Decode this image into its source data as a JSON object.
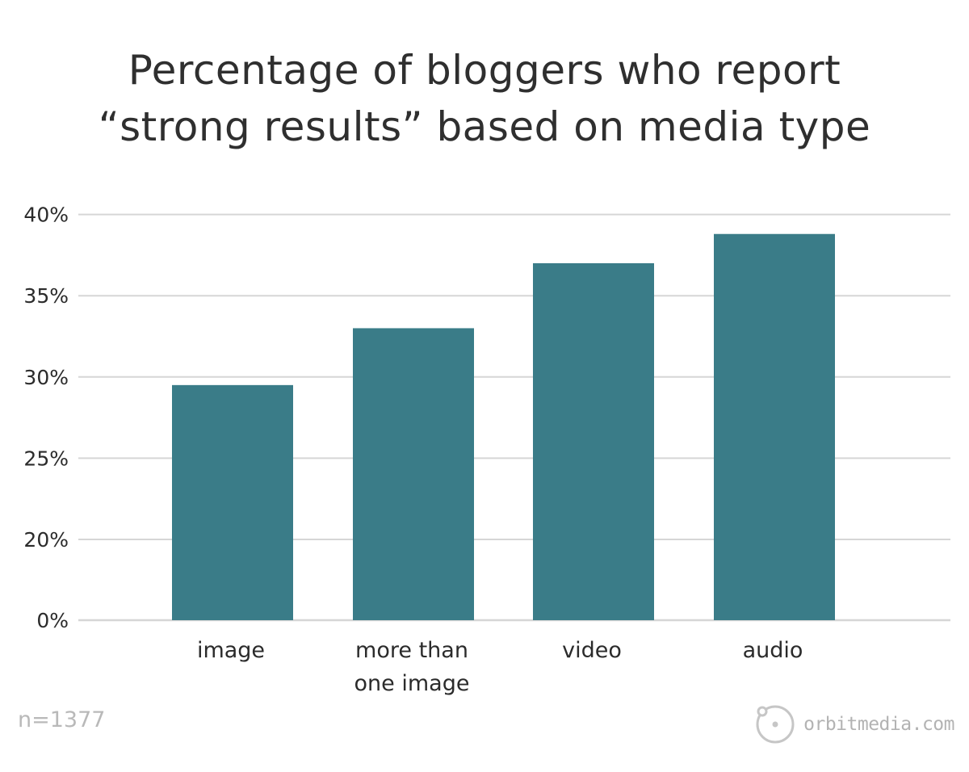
{
  "chart_data": {
    "type": "bar",
    "title_lines": [
      "Percentage of bloggers who report",
      "“strong results” based on media type"
    ],
    "categories": [
      [
        "image"
      ],
      [
        "more than",
        "one image"
      ],
      [
        "video"
      ],
      [
        "audio"
      ]
    ],
    "values": [
      29.5,
      33,
      37,
      38.8
    ],
    "y_ticks": [
      {
        "value": 0,
        "label": "0%"
      },
      {
        "value": 20,
        "label": "20%"
      },
      {
        "value": 25,
        "label": "25%"
      },
      {
        "value": 30,
        "label": "30%"
      },
      {
        "value": 35,
        "label": "35%"
      },
      {
        "value": 40,
        "label": "40%"
      }
    ],
    "ylim": [
      0,
      40
    ],
    "axis_note": "y-axis scale is broken between 0% and 20%",
    "grid": true,
    "bar_color": "#3a7c88",
    "grid_color": "#d6d6d6"
  },
  "footnote": "n=1377",
  "brand": {
    "name": "orbitmedia.com",
    "icon": "orbit-logo-icon"
  }
}
